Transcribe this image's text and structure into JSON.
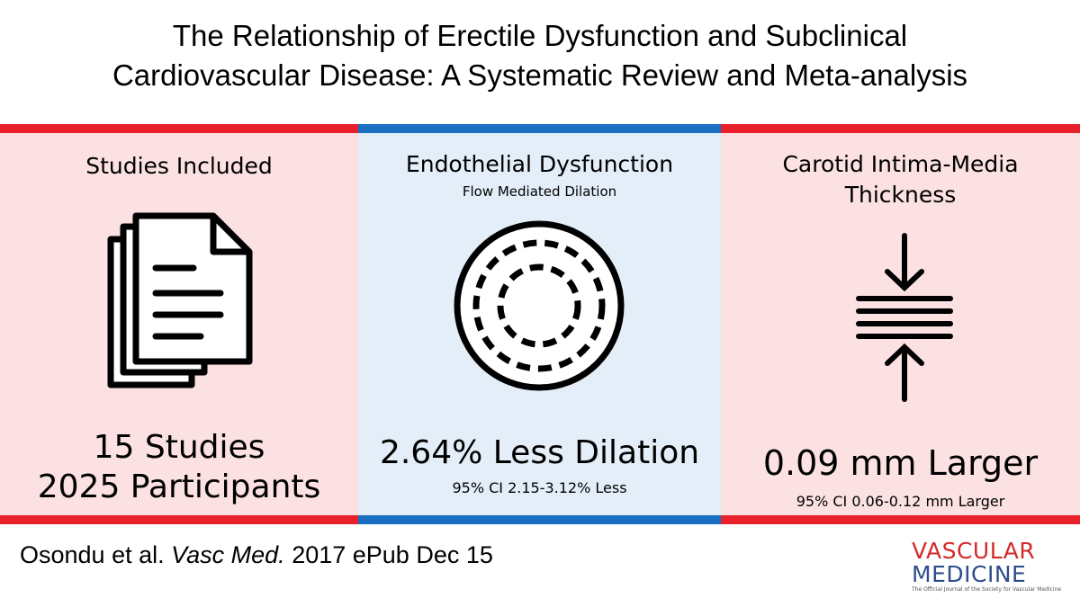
{
  "title": {
    "line1": "The Relationship of Erectile Dysfunction and Subclinical",
    "line2": "Cardiovascular Disease: A Systematic Review and Meta-analysis"
  },
  "colors": {
    "red": "#e8202a",
    "blue": "#1a6fc0",
    "pink_bg": "#fbe1e2",
    "blue_bg": "#e3eef8"
  },
  "panels": {
    "studies": {
      "heading": "Studies Included",
      "icon": "document-stack-icon",
      "line1": "15 Studies",
      "line2": "2025 Participants"
    },
    "endothelial": {
      "heading": "Endothelial Dysfunction",
      "subheading": "Flow Mediated Dilation",
      "icon": "dilation-rings-icon",
      "result": "2.64% Less Dilation",
      "ci": "95% CI 2.15-3.12% Less"
    },
    "carotid": {
      "heading_line1": "Carotid Intima-Media",
      "heading_line2": "Thickness",
      "icon": "compression-arrows-icon",
      "result": "0.09 mm Larger",
      "ci": "95% CI 0.06-0.12 mm Larger"
    }
  },
  "footer": {
    "authors": "Osondu et al.",
    "journal": "Vasc Med.",
    "pub": "2017 ePub Dec 15"
  },
  "logo": {
    "line1": "VASCULAR",
    "line2": "MEDICINE",
    "tagline": "The Official Journal of the Society for Vascular Medicine"
  }
}
